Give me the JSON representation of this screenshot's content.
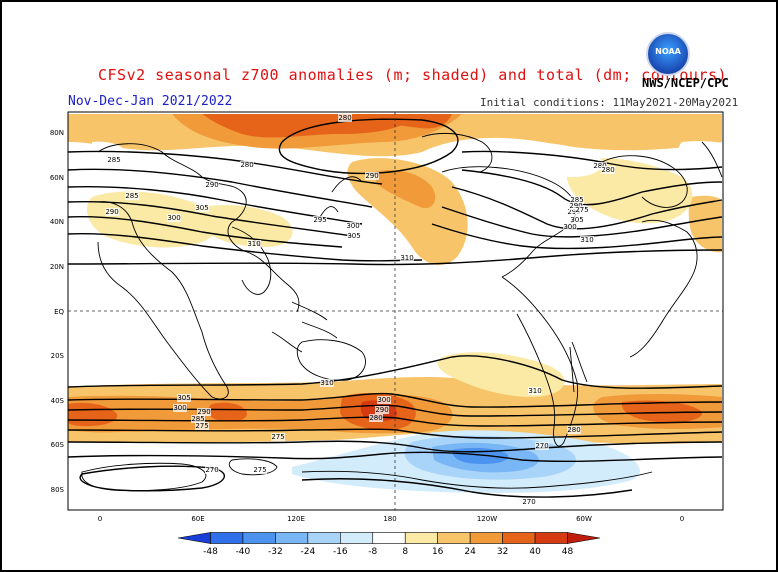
{
  "title": "CFSv2 seasonal z700 anomalies (m; shaded) and total (dm; contours)",
  "subtitle": "Nov-Dec-Jan 2021/2022",
  "initial_conditions": "Initial conditions: 11May2021-20May2021",
  "agency": "NWS/NCEP/CPC",
  "logo_text": "NOAA",
  "lat_labels": [
    "80N",
    "60N",
    "40N",
    "20N",
    "EQ",
    "20S",
    "40S",
    "60S",
    "80S"
  ],
  "lon_labels": [
    "0",
    "60E",
    "120E",
    "180",
    "120W",
    "60W",
    "0"
  ],
  "colorbar": {
    "labels": [
      "-48",
      "-40",
      "-32",
      "-24",
      "-16",
      "-8",
      "8",
      "16",
      "24",
      "32",
      "40",
      "48"
    ],
    "colors": [
      "#1a3fd8",
      "#2f6fea",
      "#4c93f0",
      "#79b6f5",
      "#a9d4f9",
      "#d2ecfb",
      "#ffffff",
      "#fbe9a6",
      "#f7c46a",
      "#f19a3a",
      "#e6641a",
      "#d63a10",
      "#c01c0c"
    ]
  },
  "contour_labels": [
    "280",
    "285",
    "290",
    "295",
    "300",
    "305",
    "310",
    "270",
    "275"
  ],
  "contour_label_list": [
    "280",
    "285",
    "290",
    "280",
    "285",
    "290",
    "300",
    "305",
    "310",
    "290",
    "295",
    "300",
    "305",
    "310",
    "280",
    "285",
    "310",
    "305",
    "300",
    "295",
    "290",
    "280",
    "275",
    "310",
    "305",
    "300",
    "290",
    "285",
    "275",
    "270",
    "270",
    "275",
    "280",
    "290",
    "300",
    "310",
    "270",
    "275",
    "280"
  ]
}
